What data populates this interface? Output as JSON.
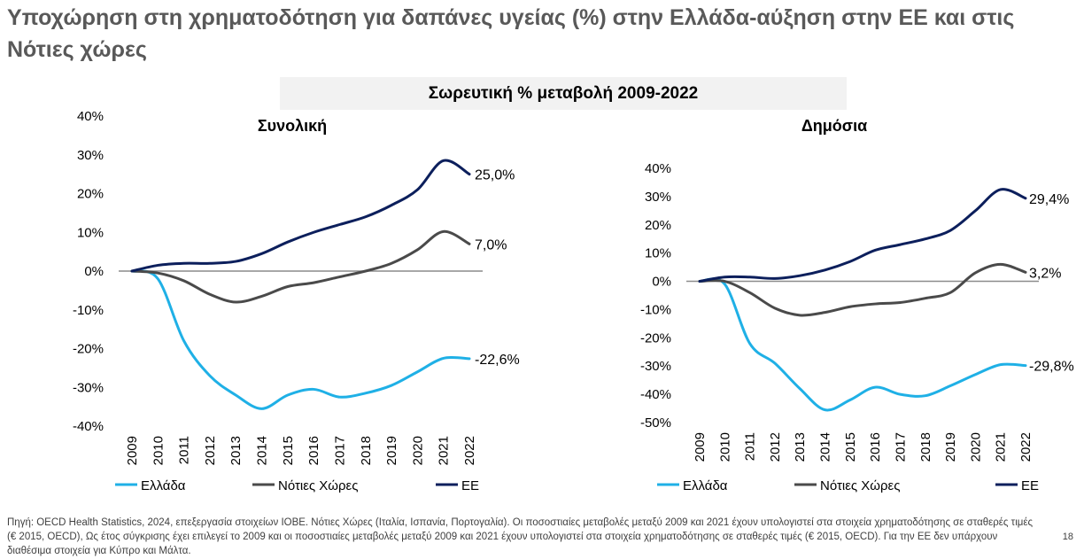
{
  "title": "Υποχώρηση στη χρηματοδότηση για δαπάνες υγείας (%) στην Ελλάδα-αύξηση στην ΕΕ και στις Νότιες χώρες",
  "banner": "Σωρευτική % μεταβολή 2009-2022",
  "source": "Πηγή: OECD Health Statistics, 2024, επεξεργασία στοιχείων ΙΟΒΕ. Νότιες Χώρες (Ιταλία, Ισπανία, Πορτογαλία). Οι ποσοστιαίες μεταβολές μεταξύ 2009 και 2021 έχουν υπολογιστεί στα στοιχεία χρηματοδότησης σε σταθερές τιμές (€ 2015, OECD), Ως έτος σύγκρισης έχει επιλεγεί το 2009 και οι ποσοστιαίες μεταβολές μεταξύ 2009 και 2021 έχουν υπολογιστεί στα στοιχεία χρηματοδότησης σε σταθερές τιμές (€ 2015, OECD). Για την ΕΕ δεν υπάρχουν διαθέσιμα στοιχεία για Κύπρο και Μάλτα.",
  "page_number": "18",
  "colors": {
    "greece": "#1fb0e6",
    "south": "#4a4a4a",
    "eu": "#0c1f5c",
    "zero": "#8c8c8c"
  },
  "chart_data": [
    {
      "type": "line",
      "title": "Συνολική",
      "x": [
        "2009",
        "2010",
        "2011",
        "2012",
        "2013",
        "2014",
        "2015",
        "2016",
        "2017",
        "2018",
        "2019",
        "2020",
        "2021",
        "2022"
      ],
      "ylim": [
        -40,
        40
      ],
      "yticks": [
        -40,
        -30,
        -20,
        -10,
        0,
        10,
        20,
        30,
        40
      ],
      "ytick_labels": [
        "-40%",
        "-30%",
        "-20%",
        "-10%",
        "0%",
        "10%",
        "20%",
        "30%",
        "40%"
      ],
      "series": [
        {
          "name": "Ελλάδα",
          "key": "greece",
          "values": [
            0,
            -2,
            -18,
            -27,
            -32,
            -35.5,
            -32,
            -30.5,
            -32.5,
            -31.5,
            -29.5,
            -26,
            -22.5,
            -22.6
          ],
          "end_label": "-22,6%"
        },
        {
          "name": "Νότιες Χώρες",
          "key": "south",
          "values": [
            0,
            -0.5,
            -2.5,
            -6,
            -8,
            -6.5,
            -4,
            -3,
            -1.5,
            0,
            2,
            5.5,
            10.2,
            7.0
          ],
          "end_label": "7,0%"
        },
        {
          "name": "ΕΕ",
          "key": "eu",
          "values": [
            0,
            1.5,
            2,
            2,
            2.5,
            4.5,
            7.5,
            10,
            12,
            14,
            17,
            21,
            28.5,
            25.0
          ],
          "end_label": "25,0%"
        }
      ]
    },
    {
      "type": "line",
      "title": "Δημόσια",
      "x": [
        "2009",
        "2010",
        "2011",
        "2012",
        "2013",
        "2014",
        "2015",
        "2016",
        "2017",
        "2018",
        "2019",
        "2020",
        "2021",
        "2022"
      ],
      "ylim": [
        -50,
        40
      ],
      "yticks": [
        -50,
        -40,
        -30,
        -20,
        -10,
        0,
        10,
        20,
        30,
        40
      ],
      "ytick_labels": [
        "-50%",
        "-40%",
        "-30%",
        "-20%",
        "-10%",
        "0%",
        "10%",
        "20%",
        "30%",
        "40%"
      ],
      "series": [
        {
          "name": "Ελλάδα",
          "key": "greece",
          "values": [
            0,
            -1,
            -22,
            -29,
            -38,
            -45.5,
            -42,
            -37.5,
            -40,
            -40.5,
            -37,
            -33,
            -29.5,
            -29.8
          ],
          "end_label": "-29,8%"
        },
        {
          "name": "Νότιες Χώρες",
          "key": "south",
          "values": [
            0,
            0,
            -4,
            -9.5,
            -12,
            -11,
            -9,
            -8,
            -7.5,
            -6,
            -4,
            3,
            6,
            3.2
          ],
          "end_label": "3,2%"
        },
        {
          "name": "ΕΕ",
          "key": "eu",
          "values": [
            0,
            1.5,
            1.5,
            1,
            2,
            4,
            7,
            11,
            13,
            15,
            18,
            25,
            32.5,
            29.4
          ],
          "end_label": "29,4%"
        }
      ]
    }
  ]
}
